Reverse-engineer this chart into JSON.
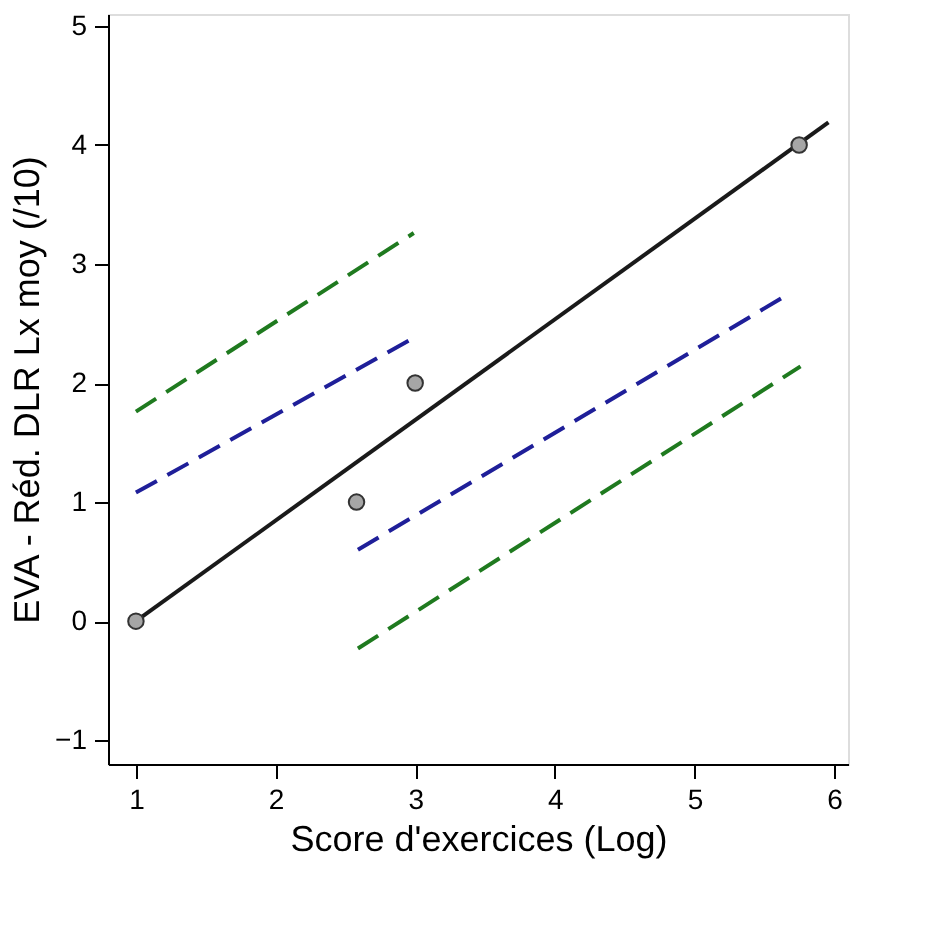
{
  "chart_data": {
    "type": "scatter",
    "xlabel": "Score d'exercices (Log)",
    "ylabel": "EVA  - Réd. DLR Lx moy (/10)",
    "xlim": [
      0.8,
      6.1
    ],
    "ylim": [
      -1.2,
      5.1
    ],
    "xticks": [
      1,
      2,
      3,
      4,
      5,
      6
    ],
    "yticks": [
      -1,
      0,
      1,
      2,
      3,
      4,
      5
    ],
    "grid": false,
    "series": [
      {
        "type": "line",
        "color": "#1a1a1a",
        "line_style": "solid",
        "x": [
          1,
          5.96
        ],
        "values": [
          0,
          4.19
        ]
      },
      {
        "type": "line",
        "color": "#1f7a1f",
        "line_style": "dashed",
        "x": [
          1,
          2.99
        ],
        "values": [
          1.76,
          3.26
        ]
      },
      {
        "type": "line",
        "color": "#1f1f99",
        "line_style": "dashed",
        "x": [
          1,
          2.99
        ],
        "values": [
          1.08,
          2.38
        ]
      },
      {
        "type": "line",
        "color": "#1f1f99",
        "line_style": "dashed",
        "x": [
          2.59,
          5.62
        ],
        "values": [
          0.6,
          2.71
        ]
      },
      {
        "type": "line",
        "color": "#1f7a1f",
        "line_style": "dashed",
        "x": [
          2.59,
          5.76
        ],
        "values": [
          -0.23,
          2.14
        ]
      },
      {
        "color": "#a6a6a6",
        "marker": "circle",
        "x": [
          1,
          2.58,
          3,
          5.75
        ],
        "values": [
          0,
          1,
          2,
          4
        ]
      }
    ]
  }
}
